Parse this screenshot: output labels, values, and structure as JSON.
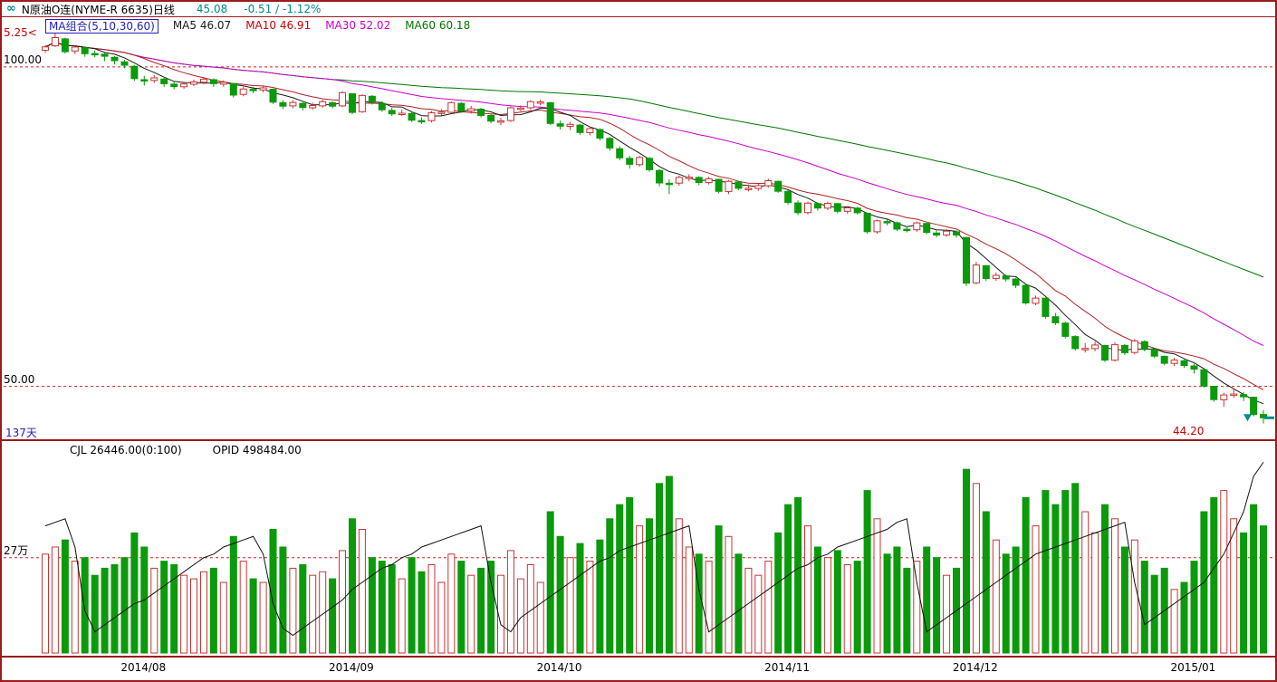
{
  "title_bar": {
    "icon": "∞",
    "instrument": "N原油O连(NYME-R 6635)日线",
    "last": "45.08",
    "change": "-0.51 / -1.12%"
  },
  "price_panel": {
    "ma_header": {
      "group": "MA组合(5,10,30,60)",
      "ma5": "MA5 46.07",
      "ma10": "MA10 46.91",
      "ma30": "MA30 52.02",
      "ma60": "MA60 60.18"
    },
    "top_label": "5.25<",
    "gridlines": [
      {
        "value": 100,
        "label": "100.00"
      },
      {
        "value": 50,
        "label": "50.00"
      }
    ],
    "left_annotation": "137天",
    "low_annotation": "44.20"
  },
  "volume_panel": {
    "header_left": "CJL  26446.00(0:100)",
    "header_right": "OPID  498484.00",
    "gridline": {
      "value": 27,
      "label": "27万"
    }
  },
  "colors": {
    "frame": "#9A1B1B",
    "grid": "#CC2222",
    "up": "#CC3333",
    "down": "#0B9A0B",
    "ma5": "#1A1A1A",
    "ma10": "#B22222",
    "ma30": "#CC00CC",
    "ma60": "#007700",
    "oi_line": "#111111",
    "accent_teal": "#008B8B",
    "text_blue": "#2222BB",
    "text_red": "#CC0000"
  },
  "chart_data": {
    "type": "candlestick",
    "title": "N原油O连(NYME-R 6635)日线",
    "ylim": [
      42,
      107.5
    ],
    "ma_periods": [
      5,
      10,
      30,
      60
    ],
    "max_high": 105.25,
    "min_low": 44.2,
    "last_close": 45.08,
    "months": [
      {
        "label": "2014/08",
        "index": 10
      },
      {
        "label": "2014/09",
        "index": 31
      },
      {
        "label": "2014/10",
        "index": 52
      },
      {
        "label": "2014/11",
        "index": 75
      },
      {
        "label": "2014/12",
        "index": 94
      },
      {
        "label": "2015/01",
        "index": 116
      }
    ],
    "ohlc_format": [
      "open",
      "high",
      "low",
      "close",
      "volume_wan",
      "open_interest_wan"
    ],
    "candles": [
      [
        102.6,
        103.4,
        102.2,
        103.13,
        28,
        36
      ],
      [
        103.3,
        105.25,
        103.1,
        104.59,
        30,
        37
      ],
      [
        104.4,
        104.6,
        102.1,
        102.39,
        32,
        38
      ],
      [
        102.5,
        103.4,
        102.0,
        103.12,
        26,
        30
      ],
      [
        103.0,
        103.2,
        101.6,
        102.07,
        27,
        12
      ],
      [
        102.1,
        102.6,
        101.5,
        102.09,
        22,
        6
      ],
      [
        102.0,
        102.2,
        100.9,
        101.67,
        24,
        8
      ],
      [
        101.5,
        101.7,
        100.4,
        100.97,
        25,
        10
      ],
      [
        100.8,
        101.1,
        99.8,
        100.27,
        27,
        12
      ],
      [
        100.1,
        100.3,
        97.8,
        98.17,
        34,
        14
      ],
      [
        98.0,
        98.6,
        97.1,
        97.88,
        30,
        15
      ],
      [
        97.9,
        98.7,
        97.5,
        98.29,
        24,
        17
      ],
      [
        98.1,
        98.4,
        96.9,
        97.38,
        26,
        19
      ],
      [
        97.3,
        97.7,
        96.5,
        96.92,
        25,
        21
      ],
      [
        96.9,
        97.7,
        96.6,
        97.34,
        22,
        23
      ],
      [
        97.3,
        98.0,
        97.0,
        97.65,
        21,
        25
      ],
      [
        97.6,
        98.4,
        97.3,
        98.08,
        23,
        27
      ],
      [
        98.0,
        98.2,
        96.9,
        97.37,
        24,
        28
      ],
      [
        97.3,
        97.9,
        96.9,
        97.59,
        20,
        30
      ],
      [
        97.4,
        97.5,
        95.2,
        95.58,
        33,
        31
      ],
      [
        95.7,
        96.9,
        95.4,
        96.54,
        26,
        32
      ],
      [
        96.5,
        96.9,
        95.9,
        96.41,
        21,
        33
      ],
      [
        96.4,
        97.1,
        96.0,
        96.72,
        20,
        28
      ],
      [
        96.5,
        96.6,
        94.2,
        94.48,
        35,
        14
      ],
      [
        94.4,
        94.8,
        93.4,
        93.86,
        30,
        7
      ],
      [
        93.9,
        94.8,
        93.5,
        94.43,
        24,
        5
      ],
      [
        94.3,
        94.5,
        93.2,
        93.65,
        25,
        7
      ],
      [
        93.6,
        94.4,
        93.3,
        93.96,
        22,
        9
      ],
      [
        93.9,
        94.9,
        93.6,
        94.55,
        23,
        11
      ],
      [
        94.4,
        94.6,
        93.5,
        93.86,
        21,
        13
      ],
      [
        93.9,
        96.2,
        93.7,
        95.96,
        29,
        15
      ],
      [
        95.8,
        95.9,
        92.6,
        92.88,
        38,
        18
      ],
      [
        93.0,
        95.7,
        92.8,
        95.54,
        35,
        20
      ],
      [
        95.4,
        95.6,
        94.1,
        94.45,
        27,
        22
      ],
      [
        94.3,
        94.6,
        93.0,
        93.29,
        26,
        24
      ],
      [
        93.2,
        93.6,
        92.3,
        92.66,
        25,
        25
      ],
      [
        92.7,
        93.3,
        92.3,
        92.75,
        21,
        27
      ],
      [
        92.7,
        93.0,
        91.4,
        91.67,
        27,
        28
      ],
      [
        91.6,
        92.1,
        91.1,
        91.56,
        23,
        30
      ],
      [
        91.6,
        93.1,
        91.3,
        92.83,
        25,
        31
      ],
      [
        92.8,
        93.4,
        92.4,
        92.92,
        20,
        32
      ],
      [
        92.9,
        94.6,
        92.7,
        94.42,
        28,
        33
      ],
      [
        94.3,
        94.5,
        92.8,
        93.07,
        26,
        34
      ],
      [
        93.1,
        93.9,
        92.7,
        93.45,
        22,
        35
      ],
      [
        93.4,
        93.6,
        92.1,
        92.41,
        24,
        36
      ],
      [
        92.4,
        92.7,
        91.2,
        91.52,
        26,
        20
      ],
      [
        91.5,
        92.0,
        90.9,
        91.56,
        22,
        8
      ],
      [
        91.6,
        93.8,
        91.4,
        93.6,
        29,
        6
      ],
      [
        93.5,
        94.0,
        93.1,
        93.57,
        21,
        10
      ],
      [
        93.6,
        94.8,
        93.3,
        94.57,
        25,
        12
      ],
      [
        94.5,
        94.9,
        94.0,
        94.53,
        20,
        14
      ],
      [
        94.4,
        94.5,
        90.9,
        91.16,
        40,
        16
      ],
      [
        91.1,
        91.6,
        90.2,
        90.73,
        33,
        18
      ],
      [
        90.7,
        91.4,
        90.1,
        91.01,
        27,
        20
      ],
      [
        90.9,
        91.1,
        89.4,
        89.74,
        31,
        22
      ],
      [
        89.7,
        90.7,
        89.3,
        90.34,
        26,
        24
      ],
      [
        90.2,
        90.4,
        88.5,
        88.85,
        32,
        26
      ],
      [
        88.8,
        89.1,
        86.9,
        87.31,
        38,
        27
      ],
      [
        87.2,
        87.6,
        85.4,
        85.77,
        42,
        29
      ],
      [
        85.7,
        86.1,
        84.1,
        84.77,
        44,
        30
      ],
      [
        84.7,
        86.1,
        84.4,
        85.82,
        36,
        31
      ],
      [
        85.7,
        85.9,
        83.6,
        83.91,
        38,
        32
      ],
      [
        83.8,
        84.0,
        81.3,
        81.84,
        48,
        33
      ],
      [
        81.8,
        82.4,
        80.1,
        81.78,
        50,
        34
      ],
      [
        81.8,
        83.0,
        81.4,
        82.7,
        38,
        35
      ],
      [
        82.7,
        83.2,
        82.1,
        82.75,
        30,
        36
      ],
      [
        82.7,
        82.9,
        81.5,
        81.91,
        28,
        18
      ],
      [
        81.9,
        82.8,
        81.6,
        82.49,
        26,
        6
      ],
      [
        82.4,
        82.5,
        80.2,
        80.52,
        36,
        8
      ],
      [
        80.5,
        82.3,
        80.1,
        82.09,
        33,
        10
      ],
      [
        82.0,
        82.2,
        80.7,
        81.01,
        28,
        12
      ],
      [
        81.0,
        81.6,
        80.5,
        81.0,
        24,
        14
      ],
      [
        81.0,
        81.7,
        80.6,
        81.42,
        22,
        16
      ],
      [
        81.4,
        82.5,
        81.1,
        82.2,
        26,
        18
      ],
      [
        82.1,
        82.2,
        80.3,
        80.54,
        34,
        20
      ],
      [
        80.5,
        80.7,
        78.4,
        78.78,
        42,
        22
      ],
      [
        78.7,
        79.1,
        76.8,
        77.19,
        44,
        24
      ],
      [
        77.2,
        78.9,
        76.9,
        78.68,
        36,
        25
      ],
      [
        78.6,
        78.8,
        77.5,
        77.91,
        30,
        27
      ],
      [
        77.9,
        78.9,
        77.6,
        78.65,
        27,
        28
      ],
      [
        78.6,
        78.7,
        77.1,
        77.4,
        29,
        30
      ],
      [
        77.4,
        78.2,
        77.0,
        77.94,
        25,
        31
      ],
      [
        77.9,
        78.1,
        76.9,
        77.18,
        26,
        32
      ],
      [
        77.1,
        77.2,
        73.9,
        74.21,
        46,
        33
      ],
      [
        74.2,
        76.1,
        73.9,
        75.91,
        38,
        34
      ],
      [
        75.8,
        76.3,
        75.2,
        75.64,
        28,
        35
      ],
      [
        75.6,
        75.8,
        74.3,
        74.61,
        30,
        37
      ],
      [
        74.6,
        75.0,
        74.1,
        74.55,
        24,
        38
      ],
      [
        74.5,
        75.8,
        74.2,
        75.58,
        26,
        20
      ],
      [
        75.5,
        75.6,
        73.8,
        74.09,
        30,
        6
      ],
      [
        74.0,
        74.4,
        73.3,
        73.69,
        27,
        8
      ],
      [
        73.7,
        74.6,
        73.4,
        74.3,
        22,
        10
      ],
      [
        74.2,
        74.4,
        73.3,
        73.69,
        24,
        12
      ],
      [
        73.3,
        73.4,
        65.7,
        66.15,
        52,
        14
      ],
      [
        66.2,
        69.5,
        66.0,
        69.0,
        48,
        16
      ],
      [
        68.9,
        69.0,
        66.5,
        66.88,
        40,
        18
      ],
      [
        66.9,
        67.8,
        66.5,
        67.38,
        32,
        20
      ],
      [
        67.3,
        67.5,
        66.4,
        66.81,
        28,
        22
      ],
      [
        66.8,
        67.0,
        65.4,
        65.84,
        30,
        24
      ],
      [
        65.8,
        65.9,
        62.8,
        63.05,
        44,
        26
      ],
      [
        63.0,
        64.2,
        62.7,
        63.82,
        36,
        28
      ],
      [
        63.8,
        63.9,
        60.6,
        60.94,
        46,
        29
      ],
      [
        60.9,
        61.5,
        59.6,
        59.95,
        42,
        30
      ],
      [
        59.9,
        60.1,
        57.5,
        57.81,
        46,
        31
      ],
      [
        57.8,
        58.0,
        55.6,
        55.91,
        48,
        32
      ],
      [
        55.9,
        56.8,
        55.3,
        55.93,
        40,
        33
      ],
      [
        55.9,
        57.0,
        55.5,
        56.47,
        34,
        34
      ],
      [
        56.4,
        56.5,
        53.8,
        54.11,
        42,
        35
      ],
      [
        54.1,
        56.9,
        53.9,
        56.52,
        38,
        36
      ],
      [
        56.4,
        56.6,
        54.9,
        55.26,
        30,
        37
      ],
      [
        55.3,
        57.4,
        55.0,
        57.12,
        32,
        20
      ],
      [
        57.0,
        57.2,
        55.5,
        55.84,
        26,
        8
      ],
      [
        55.8,
        56.0,
        54.4,
        54.73,
        22,
        10
      ],
      [
        54.7,
        54.8,
        53.3,
        53.61,
        24,
        12
      ],
      [
        53.6,
        54.5,
        53.2,
        54.12,
        18,
        14
      ],
      [
        54.0,
        54.2,
        52.9,
        53.27,
        20,
        16
      ],
      [
        53.2,
        53.5,
        52.0,
        52.69,
        26,
        18
      ],
      [
        52.6,
        52.7,
        49.8,
        50.04,
        40,
        20
      ],
      [
        50.0,
        50.1,
        47.6,
        47.93,
        44,
        24
      ],
      [
        47.9,
        49.0,
        46.8,
        48.65,
        46,
        28
      ],
      [
        48.6,
        49.7,
        48.2,
        48.79,
        38,
        34
      ],
      [
        48.7,
        49.1,
        47.7,
        48.36,
        34,
        40
      ],
      [
        48.3,
        48.4,
        45.3,
        45.59,
        42,
        50
      ],
      [
        45.6,
        46.3,
        44.2,
        45.08,
        36,
        54
      ]
    ]
  }
}
